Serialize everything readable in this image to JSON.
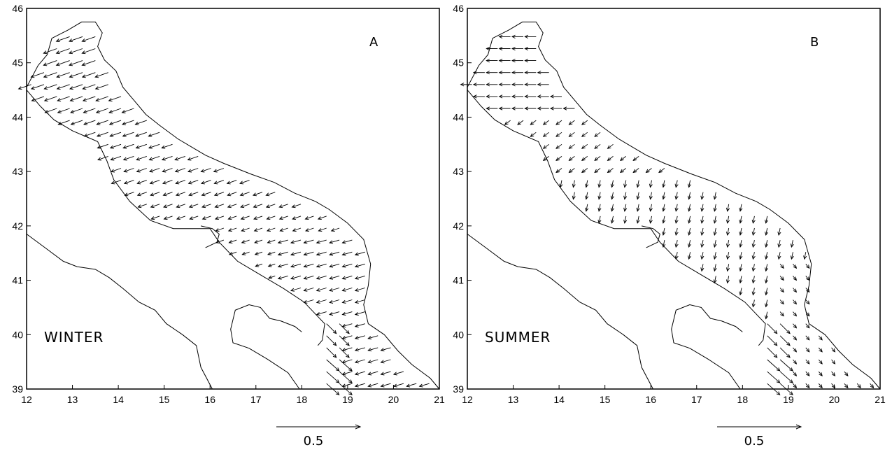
{
  "figure": {
    "panels": [
      {
        "letter": "A",
        "season": "WINTER",
        "x_ticks": [
          "12",
          "13",
          "14",
          "15",
          "16",
          "17",
          "18",
          "19",
          "20",
          "21"
        ],
        "y_ticks": [
          "39",
          "40",
          "41",
          "42",
          "43",
          "44",
          "45",
          "46"
        ],
        "scale_vector_label": "0.5"
      },
      {
        "letter": "B",
        "season": "SUMMER",
        "x_ticks": [
          "12",
          "13",
          "14",
          "15",
          "16",
          "17",
          "18",
          "19",
          "20",
          "21"
        ],
        "y_ticks": [
          "39",
          "40",
          "41",
          "42",
          "43",
          "44",
          "45",
          "46"
        ],
        "scale_vector_label": "0.5"
      }
    ]
  },
  "map": {
    "lon_range": [
      12,
      21
    ],
    "lat_range": [
      39,
      46
    ],
    "land_outline_color": "#000000",
    "arrow_color": "#000000",
    "reference_vector_magnitude": 0.5
  }
}
